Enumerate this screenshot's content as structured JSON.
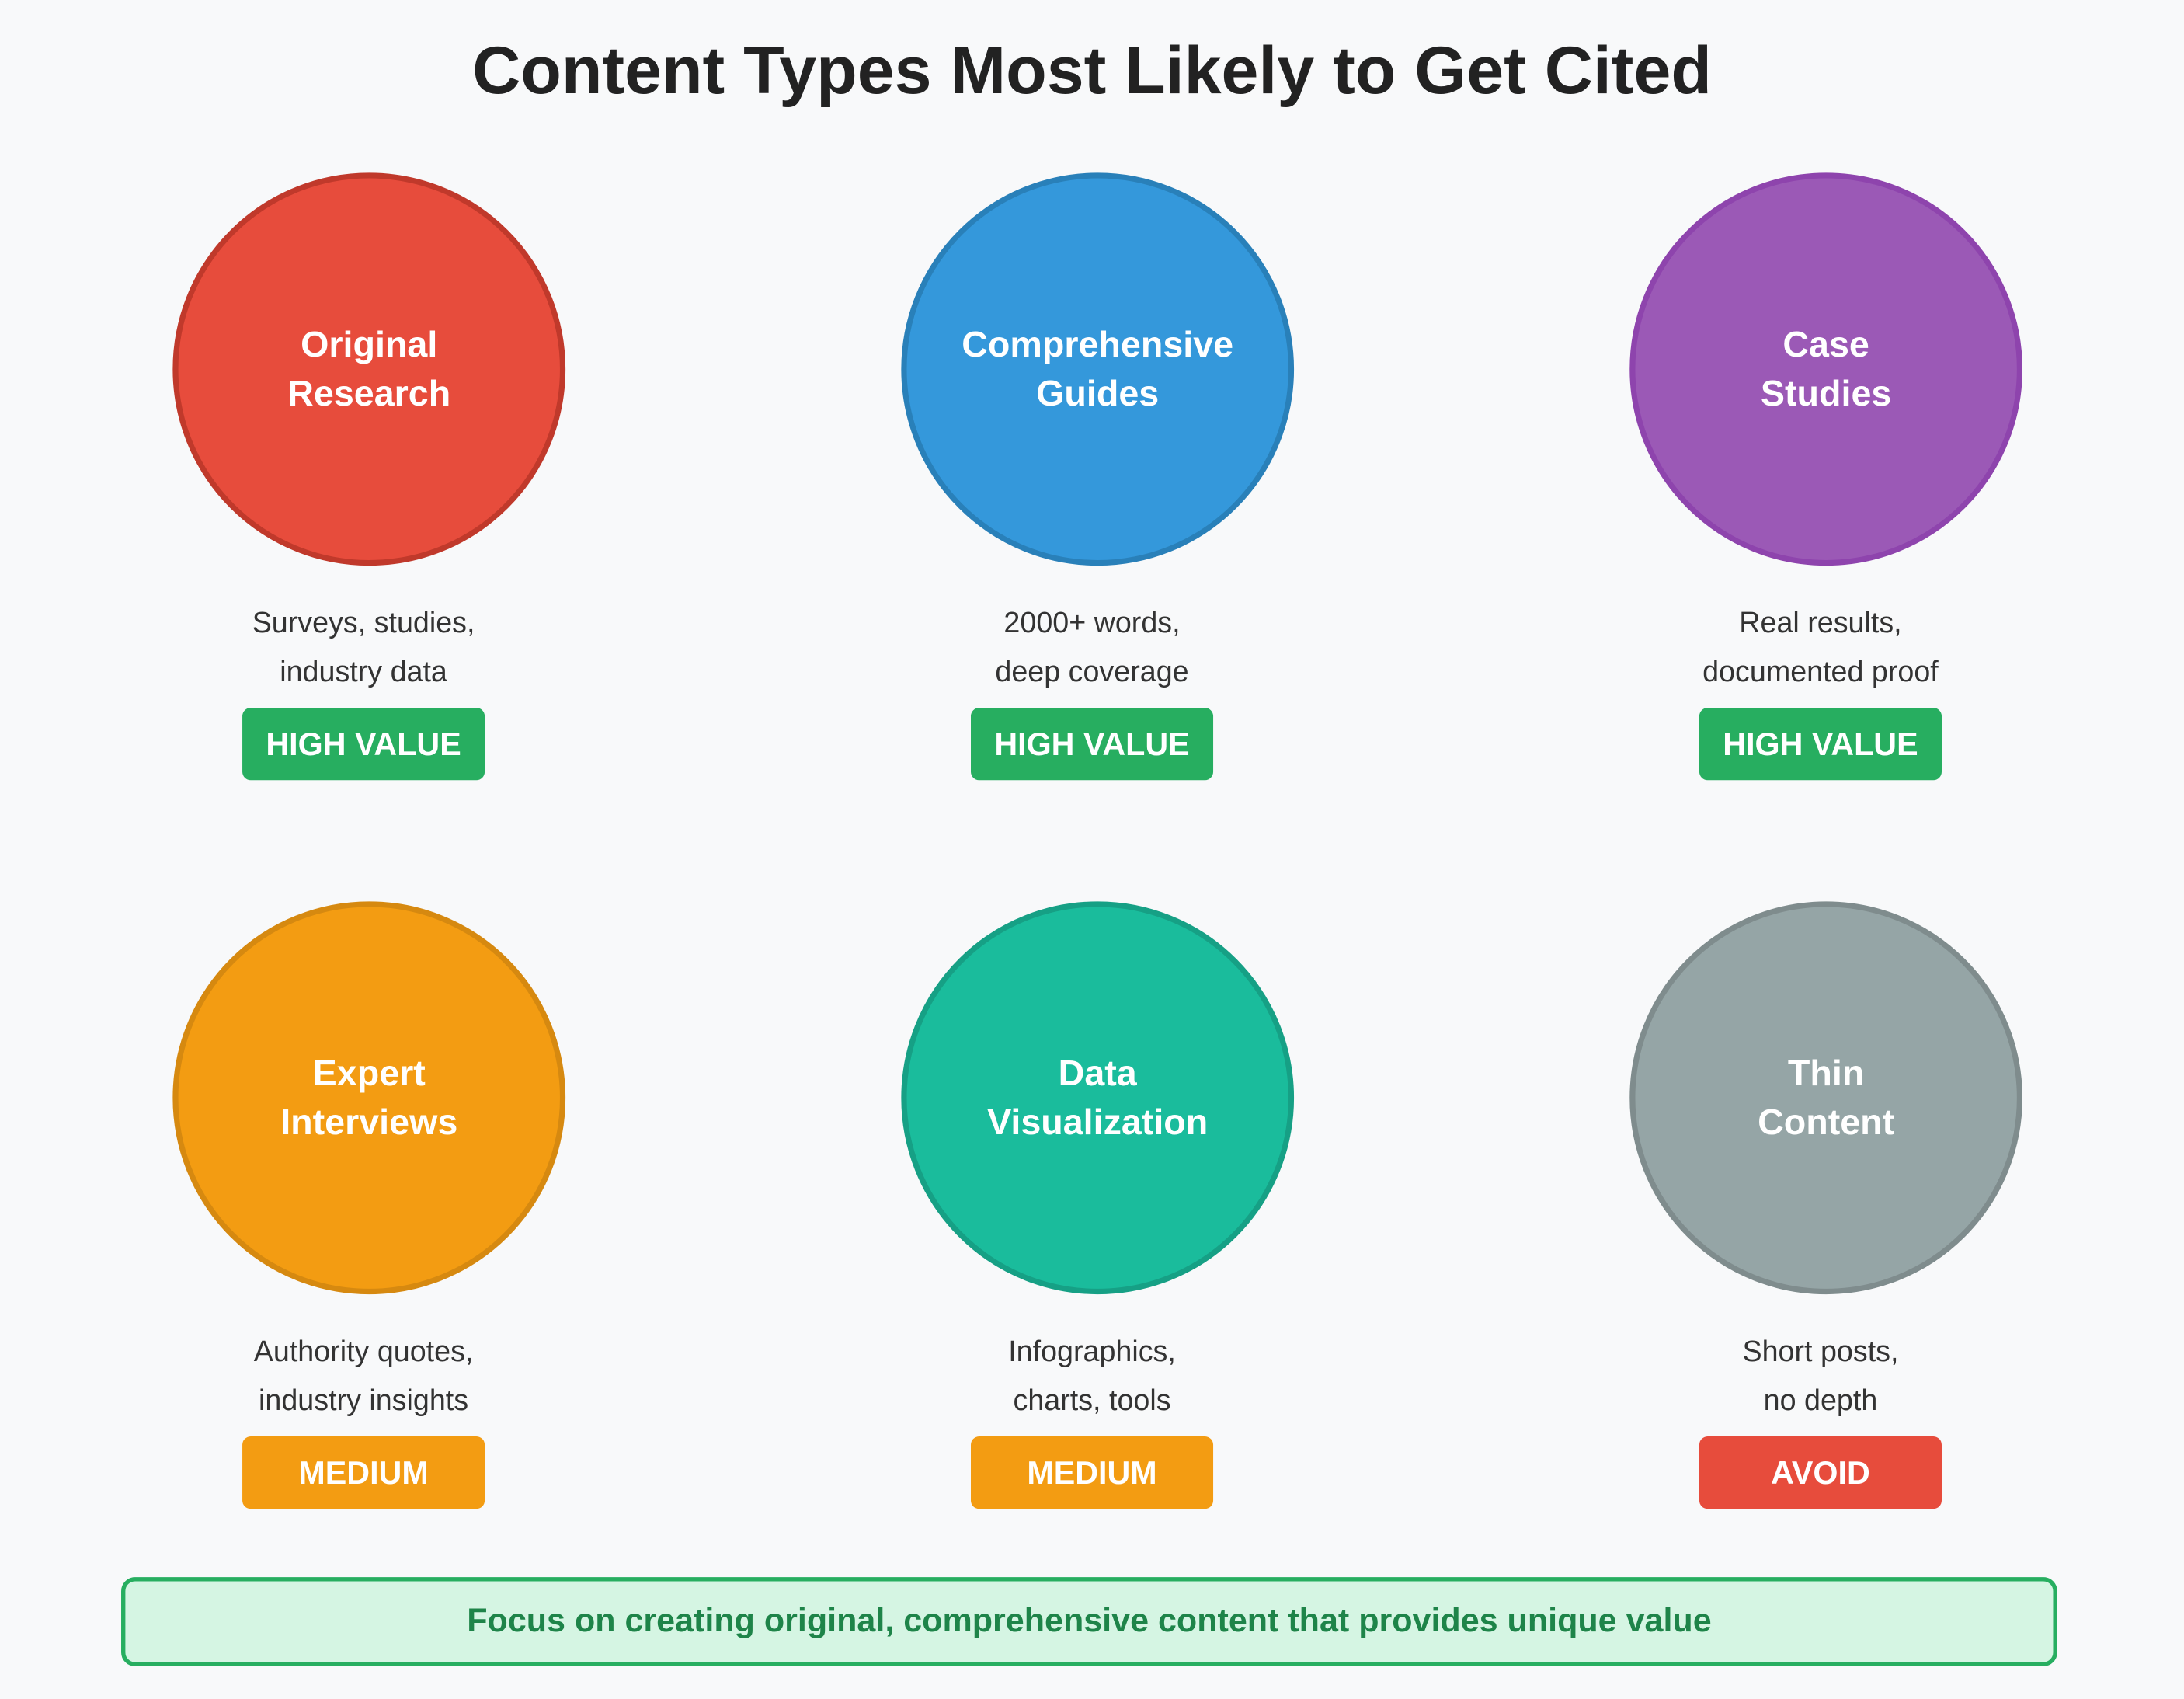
{
  "title": "Content Types Most Likely to Get Cited",
  "cards": [
    {
      "line1": "Original",
      "line2": "Research",
      "desc1": "Surveys, studies,",
      "desc2": "industry data",
      "badge": "HIGH VALUE",
      "fill": "#e74c3c",
      "stroke": "#c0392b",
      "badge_color": "#27ae60"
    },
    {
      "line1": "Comprehensive",
      "line2": "Guides",
      "desc1": "2000+ words,",
      "desc2": "deep coverage",
      "badge": "HIGH VALUE",
      "fill": "#3498db",
      "stroke": "#2980b9",
      "badge_color": "#27ae60"
    },
    {
      "line1": "Case",
      "line2": "Studies",
      "desc1": "Real results,",
      "desc2": "documented proof",
      "badge": "HIGH VALUE",
      "fill": "#9b59b6",
      "stroke": "#8e44ad",
      "badge_color": "#27ae60"
    },
    {
      "line1": "Expert",
      "line2": "Interviews",
      "desc1": "Authority quotes,",
      "desc2": "industry insights",
      "badge": "MEDIUM",
      "fill": "#f39c12",
      "stroke": "#d68910",
      "badge_color": "#f39c12"
    },
    {
      "line1": "Data",
      "line2": "Visualization",
      "desc1": "Infographics,",
      "desc2": "charts, tools",
      "badge": "MEDIUM",
      "fill": "#1abc9c",
      "stroke": "#16a085",
      "badge_color": "#f39c12"
    },
    {
      "line1": "Thin",
      "line2": "Content",
      "desc1": "Short posts,",
      "desc2": "no depth",
      "badge": "AVOID",
      "fill": "#95a5a6",
      "stroke": "#7f8c8d",
      "badge_color": "#e74c3c"
    }
  ],
  "footer": "Focus on creating original, comprehensive content that provides unique value"
}
